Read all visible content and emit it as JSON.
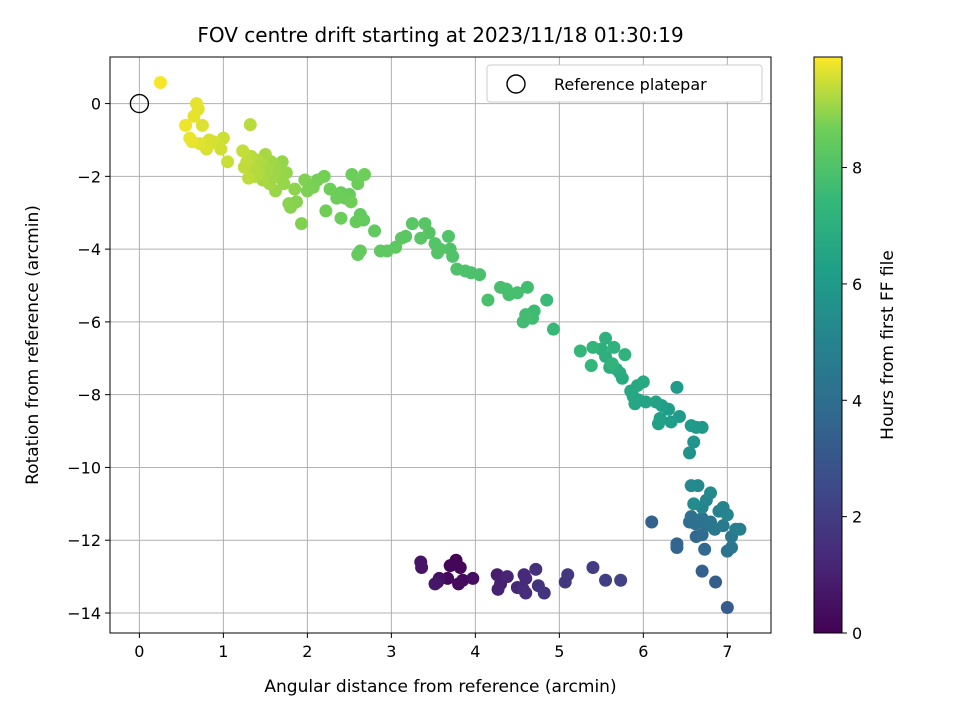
{
  "chart_data": {
    "type": "scatter",
    "title": "FOV centre drift starting at 2023/11/18 01:30:19",
    "xlabel": "Angular distance from reference (arcmin)",
    "ylabel": "Rotation from reference (arcmin)",
    "xlim": [
      -0.35,
      7.52
    ],
    "ylim": [
      -14.55,
      1.28
    ],
    "xticks": [
      0,
      1,
      2,
      3,
      4,
      5,
      6,
      7
    ],
    "yticks": [
      0,
      -2,
      -4,
      -6,
      -8,
      -10,
      -12,
      -14
    ],
    "ytick_labels": [
      "0",
      "−2",
      "−4",
      "−6",
      "−8",
      "−10",
      "−12",
      "−14"
    ],
    "grid": true,
    "legend": {
      "placement": "top-right",
      "entries": [
        "Reference platepar"
      ]
    },
    "reference_point": {
      "x": 0,
      "y": 0,
      "label": "Reference platepar",
      "marker": "open-circle"
    },
    "colorbar": {
      "label": "Hours from first FF file",
      "colormap": "viridis",
      "range": [
        0,
        9.9
      ],
      "ticks": [
        0,
        2,
        4,
        6,
        8
      ]
    },
    "points": [
      {
        "x": 3.77,
        "y": -12.55,
        "t": 0.05
      },
      {
        "x": 3.75,
        "y": -12.65,
        "t": 0.1
      },
      {
        "x": 3.7,
        "y": -12.7,
        "t": 0.15
      },
      {
        "x": 3.82,
        "y": -12.75,
        "t": 0.2
      },
      {
        "x": 3.67,
        "y": -13.05,
        "t": 0.25
      },
      {
        "x": 3.85,
        "y": -13.1,
        "t": 0.3
      },
      {
        "x": 3.8,
        "y": -13.2,
        "t": 0.35
      },
      {
        "x": 3.97,
        "y": -13.05,
        "t": 0.4
      },
      {
        "x": 3.57,
        "y": -13.05,
        "t": 0.5
      },
      {
        "x": 3.55,
        "y": -13.15,
        "t": 0.55
      },
      {
        "x": 3.35,
        "y": -12.6,
        "t": 0.6
      },
      {
        "x": 3.36,
        "y": -12.75,
        "t": 0.65
      },
      {
        "x": 3.52,
        "y": -13.2,
        "t": 0.7
      },
      {
        "x": 4.26,
        "y": -12.95,
        "t": 0.9
      },
      {
        "x": 4.3,
        "y": -13.2,
        "t": 1.0
      },
      {
        "x": 4.27,
        "y": -13.35,
        "t": 1.05
      },
      {
        "x": 4.38,
        "y": -13.0,
        "t": 1.1
      },
      {
        "x": 4.5,
        "y": -13.3,
        "t": 1.2
      },
      {
        "x": 4.58,
        "y": -12.95,
        "t": 1.25
      },
      {
        "x": 4.6,
        "y": -13.05,
        "t": 1.3
      },
      {
        "x": 4.57,
        "y": -13.35,
        "t": 1.4
      },
      {
        "x": 4.6,
        "y": -13.45,
        "t": 1.45
      },
      {
        "x": 4.72,
        "y": -12.8,
        "t": 1.55
      },
      {
        "x": 4.75,
        "y": -13.25,
        "t": 1.6
      },
      {
        "x": 4.82,
        "y": -13.45,
        "t": 1.7
      },
      {
        "x": 5.07,
        "y": -13.15,
        "t": 1.8
      },
      {
        "x": 5.1,
        "y": -12.95,
        "t": 1.85
      },
      {
        "x": 5.4,
        "y": -12.75,
        "t": 2.0
      },
      {
        "x": 5.55,
        "y": -13.1,
        "t": 2.1
      },
      {
        "x": 5.73,
        "y": -13.1,
        "t": 2.2
      },
      {
        "x": 7.0,
        "y": -13.85,
        "t": 3.2
      },
      {
        "x": 6.86,
        "y": -13.15,
        "t": 3.3
      },
      {
        "x": 6.7,
        "y": -12.85,
        "t": 3.4
      },
      {
        "x": 6.1,
        "y": -11.5,
        "t": 3.5
      },
      {
        "x": 6.4,
        "y": -12.1,
        "t": 3.6
      },
      {
        "x": 6.4,
        "y": -12.2,
        "t": 3.65
      },
      {
        "x": 6.63,
        "y": -11.9,
        "t": 3.75
      },
      {
        "x": 6.73,
        "y": -12.25,
        "t": 3.8
      },
      {
        "x": 6.7,
        "y": -11.85,
        "t": 3.9
      },
      {
        "x": 6.55,
        "y": -11.5,
        "t": 4.0
      },
      {
        "x": 6.57,
        "y": -11.35,
        "t": 4.1
      },
      {
        "x": 6.62,
        "y": -11.55,
        "t": 4.15
      },
      {
        "x": 6.7,
        "y": -11.4,
        "t": 4.2
      },
      {
        "x": 6.75,
        "y": -11.6,
        "t": 4.3
      },
      {
        "x": 6.8,
        "y": -11.5,
        "t": 4.35
      },
      {
        "x": 6.85,
        "y": -11.7,
        "t": 4.45
      },
      {
        "x": 6.95,
        "y": -11.6,
        "t": 4.55
      },
      {
        "x": 7.0,
        "y": -12.3,
        "t": 4.3
      },
      {
        "x": 7.05,
        "y": -12.2,
        "t": 4.4
      },
      {
        "x": 7.05,
        "y": -11.9,
        "t": 4.5
      },
      {
        "x": 7.1,
        "y": -11.7,
        "t": 4.7
      },
      {
        "x": 7.15,
        "y": -11.7,
        "t": 4.8
      },
      {
        "x": 6.9,
        "y": -11.2,
        "t": 4.9
      },
      {
        "x": 6.95,
        "y": -11.1,
        "t": 5.0
      },
      {
        "x": 7.0,
        "y": -11.3,
        "t": 5.05
      },
      {
        "x": 6.7,
        "y": -11.1,
        "t": 5.1
      },
      {
        "x": 6.75,
        "y": -10.9,
        "t": 5.15
      },
      {
        "x": 6.8,
        "y": -10.7,
        "t": 5.2
      },
      {
        "x": 6.65,
        "y": -10.5,
        "t": 5.25
      },
      {
        "x": 6.57,
        "y": -10.5,
        "t": 5.3
      },
      {
        "x": 6.6,
        "y": -11.0,
        "t": 5.35
      },
      {
        "x": 6.55,
        "y": -9.6,
        "t": 5.7
      },
      {
        "x": 6.6,
        "y": -9.3,
        "t": 5.8
      },
      {
        "x": 6.63,
        "y": -8.9,
        "t": 5.9
      },
      {
        "x": 6.7,
        "y": -8.9,
        "t": 5.95
      },
      {
        "x": 6.57,
        "y": -8.85,
        "t": 6.0
      },
      {
        "x": 6.43,
        "y": -8.6,
        "t": 6.05
      },
      {
        "x": 6.4,
        "y": -7.8,
        "t": 6.1
      },
      {
        "x": 6.3,
        "y": -8.4,
        "t": 6.15
      },
      {
        "x": 6.33,
        "y": -8.75,
        "t": 6.2
      },
      {
        "x": 6.22,
        "y": -8.3,
        "t": 6.25
      },
      {
        "x": 6.2,
        "y": -8.65,
        "t": 6.3
      },
      {
        "x": 6.18,
        "y": -8.8,
        "t": 6.35
      },
      {
        "x": 6.15,
        "y": -8.2,
        "t": 6.4
      },
      {
        "x": 6.03,
        "y": -8.2,
        "t": 6.45
      },
      {
        "x": 5.95,
        "y": -8.15,
        "t": 6.5
      },
      {
        "x": 5.9,
        "y": -8.25,
        "t": 6.55
      },
      {
        "x": 5.88,
        "y": -8.05,
        "t": 6.6
      },
      {
        "x": 5.85,
        "y": -7.9,
        "t": 6.65
      },
      {
        "x": 5.93,
        "y": -7.75,
        "t": 6.7
      },
      {
        "x": 6.0,
        "y": -7.65,
        "t": 6.75
      },
      {
        "x": 5.75,
        "y": -7.55,
        "t": 6.8
      },
      {
        "x": 5.72,
        "y": -7.4,
        "t": 6.85
      },
      {
        "x": 5.68,
        "y": -7.3,
        "t": 6.9
      },
      {
        "x": 5.6,
        "y": -7.25,
        "t": 6.95
      },
      {
        "x": 5.55,
        "y": -6.95,
        "t": 7.0
      },
      {
        "x": 5.5,
        "y": -6.75,
        "t": 7.05
      },
      {
        "x": 5.55,
        "y": -6.45,
        "t": 7.1
      },
      {
        "x": 5.65,
        "y": -6.7,
        "t": 7.15
      },
      {
        "x": 5.78,
        "y": -6.9,
        "t": 7.2
      },
      {
        "x": 5.63,
        "y": -7.15,
        "t": 7.25
      },
      {
        "x": 5.4,
        "y": -6.7,
        "t": 7.3
      },
      {
        "x": 5.38,
        "y": -7.2,
        "t": 7.35
      },
      {
        "x": 5.25,
        "y": -6.8,
        "t": 7.4
      },
      {
        "x": 4.93,
        "y": -6.2,
        "t": 7.5
      },
      {
        "x": 4.85,
        "y": -5.4,
        "t": 7.55
      },
      {
        "x": 4.7,
        "y": -5.7,
        "t": 7.6
      },
      {
        "x": 4.68,
        "y": -5.9,
        "t": 7.65
      },
      {
        "x": 4.57,
        "y": -6.0,
        "t": 7.7
      },
      {
        "x": 4.6,
        "y": -5.8,
        "t": 7.72
      },
      {
        "x": 4.62,
        "y": -5.05,
        "t": 7.75
      },
      {
        "x": 4.5,
        "y": -5.2,
        "t": 7.78
      },
      {
        "x": 4.4,
        "y": -5.25,
        "t": 7.8
      },
      {
        "x": 4.37,
        "y": -5.1,
        "t": 7.83
      },
      {
        "x": 4.3,
        "y": -5.05,
        "t": 7.85
      },
      {
        "x": 4.15,
        "y": -5.4,
        "t": 7.88
      },
      {
        "x": 4.05,
        "y": -4.7,
        "t": 7.9
      },
      {
        "x": 3.95,
        "y": -4.65,
        "t": 7.93
      },
      {
        "x": 3.88,
        "y": -4.6,
        "t": 7.95
      },
      {
        "x": 3.78,
        "y": -4.55,
        "t": 7.98
      },
      {
        "x": 3.73,
        "y": -4.2,
        "t": 8.0
      },
      {
        "x": 3.7,
        "y": -4.0,
        "t": 8.03
      },
      {
        "x": 3.68,
        "y": -3.65,
        "t": 8.05
      },
      {
        "x": 3.58,
        "y": -4.0,
        "t": 8.08
      },
      {
        "x": 3.55,
        "y": -4.1,
        "t": 8.1
      },
      {
        "x": 3.52,
        "y": -3.85,
        "t": 8.13
      },
      {
        "x": 3.45,
        "y": -3.55,
        "t": 8.15
      },
      {
        "x": 3.4,
        "y": -3.3,
        "t": 8.18
      },
      {
        "x": 3.35,
        "y": -3.7,
        "t": 8.2
      },
      {
        "x": 3.25,
        "y": -3.3,
        "t": 8.23
      },
      {
        "x": 3.17,
        "y": -3.65,
        "t": 8.25
      },
      {
        "x": 3.12,
        "y": -3.7,
        "t": 8.28
      },
      {
        "x": 3.05,
        "y": -3.95,
        "t": 8.3
      },
      {
        "x": 2.95,
        "y": -4.05,
        "t": 8.33
      },
      {
        "x": 2.87,
        "y": -4.05,
        "t": 8.35
      },
      {
        "x": 2.8,
        "y": -3.5,
        "t": 8.38
      },
      {
        "x": 2.63,
        "y": -3.05,
        "t": 8.4
      },
      {
        "x": 2.67,
        "y": -3.2,
        "t": 8.43
      },
      {
        "x": 2.63,
        "y": -4.05,
        "t": 8.45
      },
      {
        "x": 2.6,
        "y": -4.15,
        "t": 8.48
      },
      {
        "x": 2.58,
        "y": -3.25,
        "t": 8.5
      },
      {
        "x": 2.5,
        "y": -2.5,
        "t": 8.53
      },
      {
        "x": 2.45,
        "y": -2.6,
        "t": 8.55
      },
      {
        "x": 2.4,
        "y": -2.45,
        "t": 8.58
      },
      {
        "x": 2.4,
        "y": -3.15,
        "t": 8.6
      },
      {
        "x": 2.35,
        "y": -2.6,
        "t": 8.63
      },
      {
        "x": 2.27,
        "y": -2.35,
        "t": 8.65
      },
      {
        "x": 2.22,
        "y": -2.95,
        "t": 8.68
      },
      {
        "x": 2.2,
        "y": -2.0,
        "t": 8.7
      },
      {
        "x": 2.12,
        "y": -2.1,
        "t": 8.73
      },
      {
        "x": 2.07,
        "y": -2.3,
        "t": 8.75
      },
      {
        "x": 2.0,
        "y": -2.4,
        "t": 8.78
      },
      {
        "x": 1.97,
        "y": -2.1,
        "t": 8.8
      },
      {
        "x": 1.93,
        "y": -3.3,
        "t": 8.83
      },
      {
        "x": 1.87,
        "y": -2.7,
        "t": 8.85
      },
      {
        "x": 1.8,
        "y": -2.85,
        "t": 8.88
      },
      {
        "x": 1.78,
        "y": -2.75,
        "t": 8.9
      },
      {
        "x": 1.85,
        "y": -2.35,
        "t": 8.93
      },
      {
        "x": 2.53,
        "y": -1.95,
        "t": 8.6
      },
      {
        "x": 2.6,
        "y": -2.2,
        "t": 8.62
      },
      {
        "x": 2.68,
        "y": -1.95,
        "t": 8.64
      },
      {
        "x": 2.52,
        "y": -2.7,
        "t": 8.66
      },
      {
        "x": 1.7,
        "y": -1.6,
        "t": 9.0
      },
      {
        "x": 1.68,
        "y": -2.05,
        "t": 9.02
      },
      {
        "x": 1.65,
        "y": -1.9,
        "t": 9.04
      },
      {
        "x": 1.62,
        "y": -1.75,
        "t": 9.06
      },
      {
        "x": 1.6,
        "y": -2.0,
        "t": 9.08
      },
      {
        "x": 1.57,
        "y": -1.6,
        "t": 9.1
      },
      {
        "x": 1.55,
        "y": -2.2,
        "t": 9.12
      },
      {
        "x": 1.52,
        "y": -1.85,
        "t": 9.14
      },
      {
        "x": 1.5,
        "y": -1.4,
        "t": 9.16
      },
      {
        "x": 1.47,
        "y": -2.1,
        "t": 9.18
      },
      {
        "x": 1.45,
        "y": -1.65,
        "t": 9.2
      },
      {
        "x": 1.42,
        "y": -1.9,
        "t": 9.22
      },
      {
        "x": 1.4,
        "y": -1.55,
        "t": 9.24
      },
      {
        "x": 1.38,
        "y": -2.0,
        "t": 9.26
      },
      {
        "x": 1.35,
        "y": -1.75,
        "t": 9.28
      },
      {
        "x": 1.33,
        "y": -1.45,
        "t": 9.3
      },
      {
        "x": 1.32,
        "y": -0.58,
        "t": 9.32
      },
      {
        "x": 1.3,
        "y": -2.05,
        "t": 9.34
      },
      {
        "x": 1.28,
        "y": -1.6,
        "t": 9.36
      },
      {
        "x": 1.25,
        "y": -1.75,
        "t": 9.38
      },
      {
        "x": 1.23,
        "y": -1.3,
        "t": 9.4
      },
      {
        "x": 1.75,
        "y": -1.9,
        "t": 9.0
      },
      {
        "x": 1.72,
        "y": -2.2,
        "t": 9.02
      },
      {
        "x": 1.62,
        "y": -2.4,
        "t": 9.05
      },
      {
        "x": 1.05,
        "y": -1.6,
        "t": 9.45
      },
      {
        "x": 1.0,
        "y": -0.95,
        "t": 9.48
      },
      {
        "x": 0.97,
        "y": -1.25,
        "t": 9.5
      },
      {
        "x": 0.93,
        "y": -1.1,
        "t": 9.52
      },
      {
        "x": 0.88,
        "y": -1.05,
        "t": 9.54
      },
      {
        "x": 0.83,
        "y": -1.0,
        "t": 9.56
      },
      {
        "x": 0.8,
        "y": -1.25,
        "t": 9.58
      },
      {
        "x": 0.78,
        "y": -1.15,
        "t": 9.6
      },
      {
        "x": 0.75,
        "y": -0.6,
        "t": 9.62
      },
      {
        "x": 0.72,
        "y": -1.1,
        "t": 9.64
      },
      {
        "x": 0.7,
        "y": -0.15,
        "t": 9.66
      },
      {
        "x": 0.68,
        "y": 0.0,
        "t": 9.68
      },
      {
        "x": 0.65,
        "y": -0.35,
        "t": 9.7
      },
      {
        "x": 0.63,
        "y": -1.05,
        "t": 9.72
      },
      {
        "x": 0.6,
        "y": -0.95,
        "t": 9.74
      },
      {
        "x": 0.55,
        "y": -0.6,
        "t": 9.76
      },
      {
        "x": 0.25,
        "y": 0.58,
        "t": 9.85
      }
    ]
  }
}
